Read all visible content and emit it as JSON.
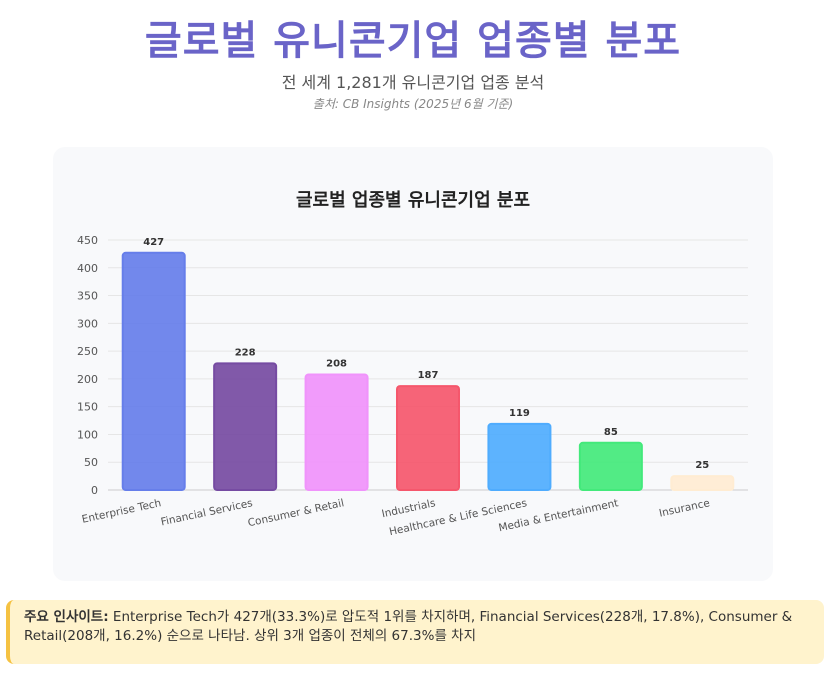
{
  "header": {
    "title": "글로벌 유니콘기업 업종별 분포",
    "subtitle": "전 세계 1,281개 유니콘기업 업종 분석",
    "source": "출처: CB Insights (2025년 6월 기준)"
  },
  "chart_data": {
    "type": "bar",
    "title": "글로벌 업종별 유니콘기업 분포",
    "categories": [
      "Enterprise Tech",
      "Financial Services",
      "Consumer & Retail",
      "Industrials",
      "Healthcare & Life Sciences",
      "Media & Entertainment",
      "Insurance"
    ],
    "values": [
      427,
      228,
      208,
      187,
      119,
      85,
      25
    ],
    "colors": [
      "#667eea",
      "#764ba2",
      "#f093fb",
      "#f5576c",
      "#4facfe",
      "#43e97b",
      "#ffecd2"
    ],
    "yticks": [
      0,
      50,
      100,
      150,
      200,
      250,
      300,
      350,
      400,
      450
    ],
    "ylim": [
      0,
      450
    ],
    "xlabel": "",
    "ylabel": "",
    "legend": "none",
    "grid": true
  },
  "insight": {
    "label": "주요 인사이트:",
    "text": " Enterprise Tech가 427개(33.3%)로 압도적 1위를 차지하며, Financial Services(228개, 17.8%), Consumer & Retail(208개, 16.2%) 순으로 나타남. 상위 3개 업종이 전체의 67.3%를 차지"
  }
}
